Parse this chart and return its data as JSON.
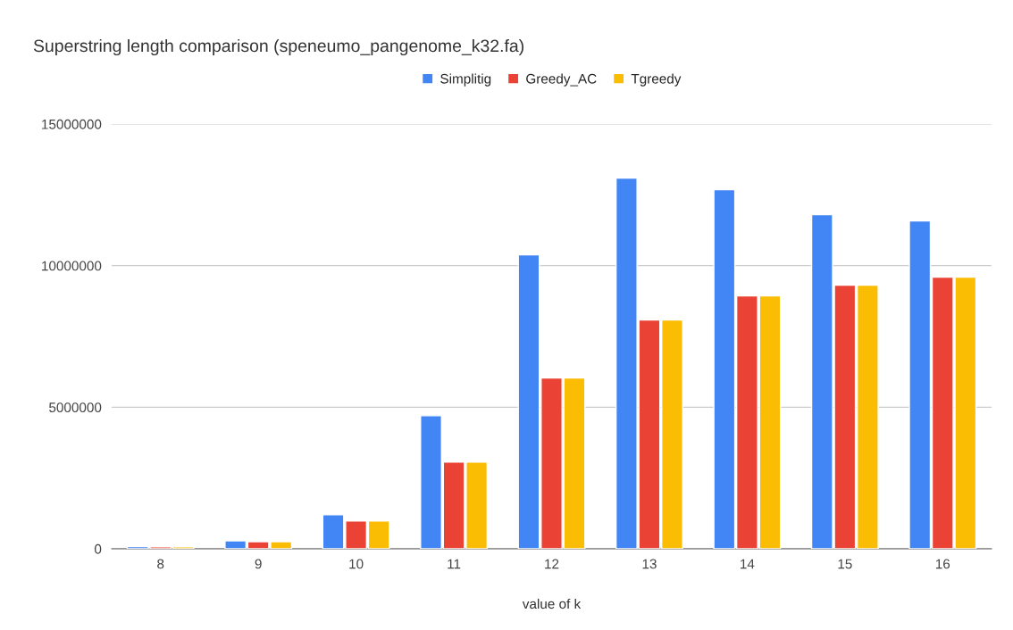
{
  "chart_data": {
    "type": "bar",
    "title": "Superstring length comparison (speneumo_pangenome_k32.fa)",
    "xlabel": "value of k",
    "categories": [
      "8",
      "9",
      "10",
      "11",
      "12",
      "13",
      "14",
      "15",
      "16"
    ],
    "series": [
      {
        "name": "Simplitig",
        "color": "#4285f4",
        "values": [
          80000,
          280000,
          1200000,
          4700000,
          10380000,
          13090000,
          12680000,
          11800000,
          11580000
        ]
      },
      {
        "name": "Greedy_AC",
        "color": "#ea4335",
        "values": [
          70000,
          250000,
          980000,
          3060000,
          6030000,
          8080000,
          8930000,
          9310000,
          9590000
        ]
      },
      {
        "name": "Tgreedy",
        "color": "#fbbc04",
        "values": [
          70000,
          250000,
          980000,
          3060000,
          6030000,
          8080000,
          8930000,
          9310000,
          9590000
        ]
      }
    ],
    "ylim": [
      0,
      15000000
    ],
    "yticks": [
      0,
      5000000,
      10000000,
      15000000
    ],
    "grid": "y",
    "legend": "top"
  }
}
